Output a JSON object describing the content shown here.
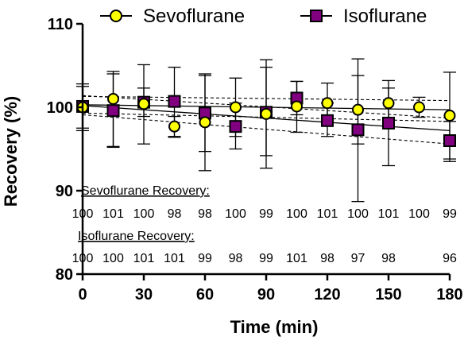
{
  "chart_data": {
    "type": "scatter",
    "xlabel": "Time (min)",
    "ylabel": "Recovery (%)",
    "xlim": [
      0,
      180
    ],
    "ylim": [
      80,
      110
    ],
    "x_ticks": [
      "0",
      "30",
      "60",
      "90",
      "120",
      "150",
      "180"
    ],
    "y_ticks": [
      "80",
      "90",
      "100",
      "110"
    ],
    "legend_position": "top",
    "series": [
      {
        "name": "Sevoflurane",
        "marker": "circle",
        "color": "#ffff00",
        "points": [
          {
            "x": 0,
            "y": 100.0,
            "err_low": 97.5,
            "err_high": 102.5
          },
          {
            "x": 15,
            "y": 101.0,
            "err_low": 95.2,
            "err_high": 104.3
          },
          {
            "x": 30,
            "y": 100.4,
            "err_low": 95.6,
            "err_high": 105.1
          },
          {
            "x": 45,
            "y": 97.7,
            "err_low": 96.5,
            "err_high": 98.9
          },
          {
            "x": 60,
            "y": 98.2,
            "err_low": 92.4,
            "err_high": 103.8
          },
          {
            "x": 75,
            "y": 100.0,
            "err_low": 96.5,
            "err_high": 103.5
          },
          {
            "x": 90,
            "y": 99.2,
            "err_low": 92.7,
            "err_high": 105.7
          },
          {
            "x": 105,
            "y": 100.1,
            "err_low": 97.0,
            "err_high": 103.1
          },
          {
            "x": 120,
            "y": 100.5,
            "err_low": 97.9,
            "err_high": 102.9
          },
          {
            "x": 135,
            "y": 99.7,
            "err_low": 95.6,
            "err_high": 103.8
          },
          {
            "x": 150,
            "y": 100.5,
            "err_low": 97.6,
            "err_high": 103.2
          },
          {
            "x": 165,
            "y": 100.0,
            "err_low": 98.8,
            "err_high": 101.2
          },
          {
            "x": 180,
            "y": 99.0,
            "err_low": 93.5,
            "err_high": 104.2
          }
        ]
      },
      {
        "name": "Isoflurane",
        "marker": "square",
        "color": "#800080",
        "points": [
          {
            "x": 0,
            "y": 100.1,
            "err_low": 97.2,
            "err_high": 102.8
          },
          {
            "x": 15,
            "y": 99.6,
            "err_low": 95.3,
            "err_high": 104.0
          },
          {
            "x": 30,
            "y": 100.6,
            "err_low": 98.9,
            "err_high": 102.3
          },
          {
            "x": 45,
            "y": 100.7,
            "err_low": 96.4,
            "err_high": 104.8
          },
          {
            "x": 60,
            "y": 99.3,
            "err_low": 94.7,
            "err_high": 104.0
          },
          {
            "x": 75,
            "y": 97.7,
            "err_low": 95.0,
            "err_high": 100.5
          },
          {
            "x": 90,
            "y": 99.4,
            "err_low": 94.2,
            "err_high": 104.8
          },
          {
            "x": 105,
            "y": 101.1,
            "err_low": 99.1,
            "err_high": 103.1
          },
          {
            "x": 120,
            "y": 98.4,
            "err_low": 96.5,
            "err_high": 100.5
          },
          {
            "x": 135,
            "y": 97.3,
            "err_low": 88.7,
            "err_high": 105.8
          },
          {
            "x": 150,
            "y": 98.1,
            "err_low": 93.0,
            "err_high": 102.3
          },
          {
            "x": 180,
            "y": 96.0,
            "err_low": 93.8,
            "err_high": 98.3
          }
        ]
      }
    ],
    "trend_lines": [
      {
        "series": "Sevoflurane",
        "from": [
          0,
          100.3
        ],
        "to": [
          180,
          99.7
        ],
        "ci_low": [
          [
            0,
            99.3
          ],
          [
            180,
            98.3
          ]
        ],
        "ci_high": [
          [
            0,
            101.3
          ],
          [
            180,
            100.8
          ]
        ]
      },
      {
        "series": "Isoflurane",
        "from": [
          0,
          100.2
        ],
        "to": [
          180,
          97.2
        ],
        "ci_low": [
          [
            0,
            99.1
          ],
          [
            180,
            95.6
          ]
        ],
        "ci_high": [
          [
            0,
            101.4
          ],
          [
            180,
            98.7
          ]
        ]
      }
    ],
    "annotations": {
      "sevo_heading": "Sevoflurane Recovery:",
      "sevo_values": [
        {
          "x": 0,
          "label": "100"
        },
        {
          "x": 15,
          "label": "101"
        },
        {
          "x": 30,
          "label": "100"
        },
        {
          "x": 45,
          "label": "98"
        },
        {
          "x": 60,
          "label": "98"
        },
        {
          "x": 75,
          "label": "100"
        },
        {
          "x": 90,
          "label": "99"
        },
        {
          "x": 105,
          "label": "100"
        },
        {
          "x": 120,
          "label": "101"
        },
        {
          "x": 135,
          "label": "100"
        },
        {
          "x": 150,
          "label": "101"
        },
        {
          "x": 165,
          "label": "100"
        },
        {
          "x": 180,
          "label": "99"
        }
      ],
      "iso_heading": "Isoflurane Recovery:",
      "iso_values": [
        {
          "x": 0,
          "label": "100"
        },
        {
          "x": 15,
          "label": "100"
        },
        {
          "x": 30,
          "label": "101"
        },
        {
          "x": 45,
          "label": "101"
        },
        {
          "x": 60,
          "label": "99"
        },
        {
          "x": 75,
          "label": "98"
        },
        {
          "x": 90,
          "label": "99"
        },
        {
          "x": 105,
          "label": "101"
        },
        {
          "x": 120,
          "label": "98"
        },
        {
          "x": 135,
          "label": "97"
        },
        {
          "x": 150,
          "label": "98"
        },
        {
          "x": 180,
          "label": "96"
        }
      ]
    }
  }
}
